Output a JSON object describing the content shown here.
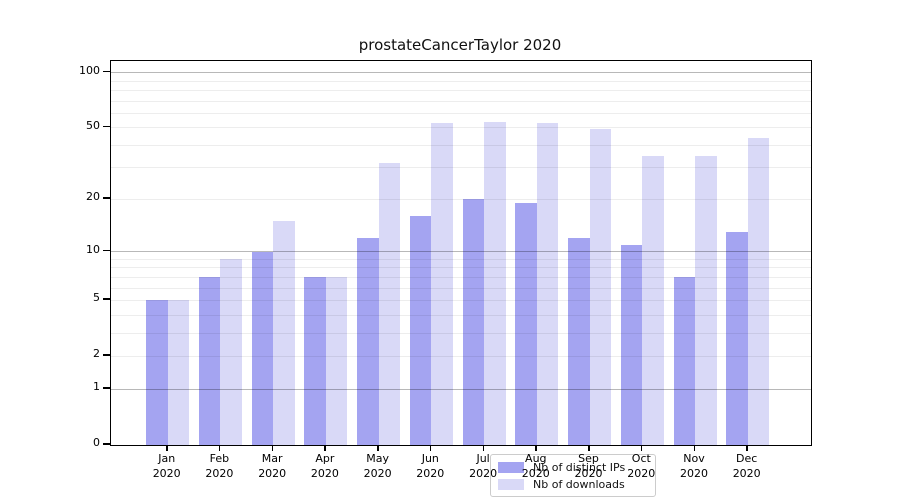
{
  "title": "prostateCancerTaylor 2020",
  "colors": {
    "ips": "#a4a4f1",
    "downloads": "#d9d9f7",
    "axis": "#000000",
    "legend_border": "#cccccc"
  },
  "legend": {
    "items": [
      {
        "label": "Nb of distinct IPs",
        "series": "ips"
      },
      {
        "label": "Nb of downloads",
        "series": "downloads"
      }
    ]
  },
  "chart_data": {
    "type": "bar",
    "title": "prostateCancerTaylor 2020",
    "categories": [
      "Jan",
      "Feb",
      "Mar",
      "Apr",
      "May",
      "Jun",
      "Jul",
      "Aug",
      "Sep",
      "Oct",
      "Nov",
      "Dec"
    ],
    "year_label": "2020",
    "series": [
      {
        "name": "Nb of distinct IPs",
        "values": [
          5,
          7,
          10,
          7,
          12,
          16,
          20,
          19,
          12,
          11,
          7,
          13
        ]
      },
      {
        "name": "Nb of downloads",
        "values": [
          5,
          9,
          15,
          7,
          32,
          53,
          54,
          53,
          49,
          35,
          35,
          44
        ]
      }
    ],
    "yscale": "log1p",
    "yticks": [
      0,
      1,
      2,
      5,
      10,
      20,
      50,
      100
    ],
    "grid_minor": [
      2,
      3,
      4,
      5,
      6,
      7,
      8,
      9,
      20,
      30,
      40,
      50,
      60,
      70,
      80,
      90
    ],
    "grid_major": [
      1,
      10,
      100
    ],
    "ylim": [
      0,
      116
    ],
    "grid": "on",
    "legend_position": "lower center"
  }
}
